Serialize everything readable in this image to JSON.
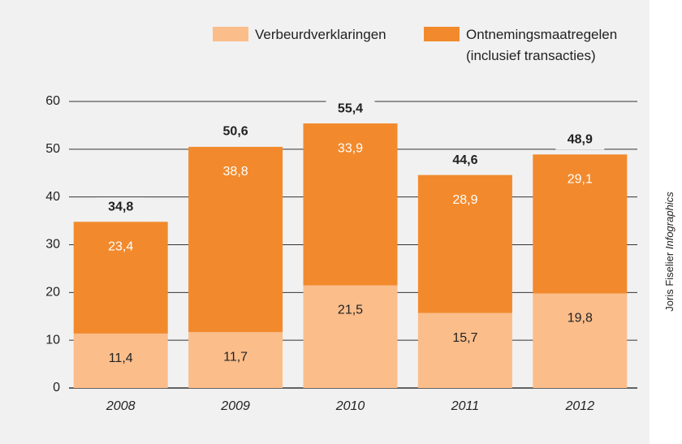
{
  "chart_data": {
    "type": "stacked_bar",
    "categories": [
      "2008",
      "2009",
      "2010",
      "2011",
      "2012"
    ],
    "series": [
      {
        "name": "Verbeurdverklaringen",
        "color": "#fbbd8a",
        "values": [
          11.4,
          11.7,
          21.5,
          15.7,
          19.8
        ],
        "value_labels": [
          "11,4",
          "11,7",
          "21,5",
          "15,7",
          "19,8"
        ]
      },
      {
        "name": "Ontnemingsmaatregelen (inclusief transacties)",
        "color": "#f28a2d",
        "values": [
          23.4,
          38.8,
          33.9,
          28.9,
          29.1
        ],
        "value_labels": [
          "23,4",
          "38,8",
          "33,9",
          "28,9",
          "29,1"
        ]
      }
    ],
    "totals": {
      "values": [
        34.8,
        50.6,
        55.4,
        44.6,
        48.9
      ],
      "value_labels": [
        "34,8",
        "50,6",
        "55,4",
        "44,6",
        "48,9"
      ]
    },
    "ylim": [
      0,
      60
    ],
    "yticks": [
      0,
      10,
      20,
      30,
      40,
      50,
      60
    ],
    "grid": true,
    "credit": {
      "name": "Joris Fiselier",
      "brand": "Infographics"
    }
  }
}
